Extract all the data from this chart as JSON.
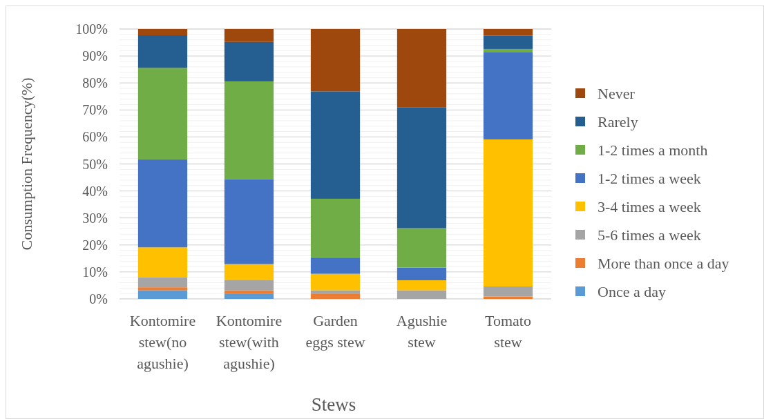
{
  "chart_data": {
    "type": "bar",
    "stacked": true,
    "xlabel": "Stews",
    "ylabel": "Consumption Frequency(%)",
    "categories": [
      "Kontomire stew(no agushie)",
      "Kontomire stew(with agushie)",
      "Garden eggs stew",
      "Agushie stew",
      "Tomato stew"
    ],
    "series": [
      {
        "name": "Once a day",
        "color": "#5b9bd5",
        "values": [
          3.2,
          2.0,
          0,
          0,
          0
        ]
      },
      {
        "name": "More than once a day",
        "color": "#ed7d31",
        "values": [
          1.1,
          1.2,
          2.0,
          0,
          0.9
        ]
      },
      {
        "name": "5-6 times a week",
        "color": "#a5a5a5",
        "values": [
          3.7,
          3.7,
          1.2,
          3.2,
          3.7
        ]
      },
      {
        "name": "3-4 times a week",
        "color": "#ffc000",
        "values": [
          11.1,
          6.0,
          6.1,
          3.7,
          54.5
        ]
      },
      {
        "name": "1-2 times a week",
        "color": "#4472c4",
        "values": [
          32.6,
          31.4,
          6.0,
          4.7,
          32.2
        ]
      },
      {
        "name": "1-2 times a month",
        "color": "#70ad47",
        "values": [
          33.9,
          36.3,
          21.8,
          14.6,
          1.3
        ]
      },
      {
        "name": "Rarely",
        "color": "#255e91",
        "values": [
          12.1,
          14.6,
          39.8,
          44.7,
          4.9
        ]
      },
      {
        "name": "Never",
        "color": "#9e480e",
        "values": [
          2.3,
          4.8,
          23.1,
          29.1,
          2.5
        ]
      }
    ],
    "ylim": [
      0,
      100
    ],
    "yticks": [
      {
        "value": 0,
        "label": "0%"
      },
      {
        "value": 2,
        "label": null
      },
      {
        "value": 4,
        "label": null
      },
      {
        "value": 6,
        "label": null
      },
      {
        "value": 8,
        "label": null
      },
      {
        "value": 10,
        "label": "10%"
      },
      {
        "value": 12,
        "label": null
      },
      {
        "value": 14,
        "label": null
      },
      {
        "value": 16,
        "label": null
      },
      {
        "value": 18,
        "label": null
      },
      {
        "value": 20,
        "label": "20%"
      },
      {
        "value": 22,
        "label": null
      },
      {
        "value": 24,
        "label": null
      },
      {
        "value": 26,
        "label": null
      },
      {
        "value": 28,
        "label": null
      },
      {
        "value": 30,
        "label": "30%"
      },
      {
        "value": 32,
        "label": null
      },
      {
        "value": 34,
        "label": null
      },
      {
        "value": 36,
        "label": null
      },
      {
        "value": 38,
        "label": null
      },
      {
        "value": 40,
        "label": "40%"
      },
      {
        "value": 42,
        "label": null
      },
      {
        "value": 44,
        "label": null
      },
      {
        "value": 46,
        "label": null
      },
      {
        "value": 48,
        "label": null
      },
      {
        "value": 50,
        "label": "50%"
      },
      {
        "value": 52,
        "label": null
      },
      {
        "value": 54,
        "label": null
      },
      {
        "value": 56,
        "label": null
      },
      {
        "value": 58,
        "label": null
      },
      {
        "value": 60,
        "label": "60%"
      },
      {
        "value": 62,
        "label": null
      },
      {
        "value": 64,
        "label": null
      },
      {
        "value": 66,
        "label": null
      },
      {
        "value": 68,
        "label": null
      },
      {
        "value": 70,
        "label": "70%"
      },
      {
        "value": 72,
        "label": null
      },
      {
        "value": 74,
        "label": null
      },
      {
        "value": 76,
        "label": null
      },
      {
        "value": 78,
        "label": null
      },
      {
        "value": 80,
        "label": "80%"
      },
      {
        "value": 82,
        "label": null
      },
      {
        "value": 84,
        "label": null
      },
      {
        "value": 86,
        "label": null
      },
      {
        "value": 88,
        "label": null
      },
      {
        "value": 90,
        "label": "90%"
      },
      {
        "value": 92,
        "label": null
      },
      {
        "value": 94,
        "label": null
      },
      {
        "value": 96,
        "label": null
      },
      {
        "value": 98,
        "label": null
      },
      {
        "value": 100,
        "label": "100%"
      }
    ],
    "grid": "y",
    "legend": "right"
  }
}
